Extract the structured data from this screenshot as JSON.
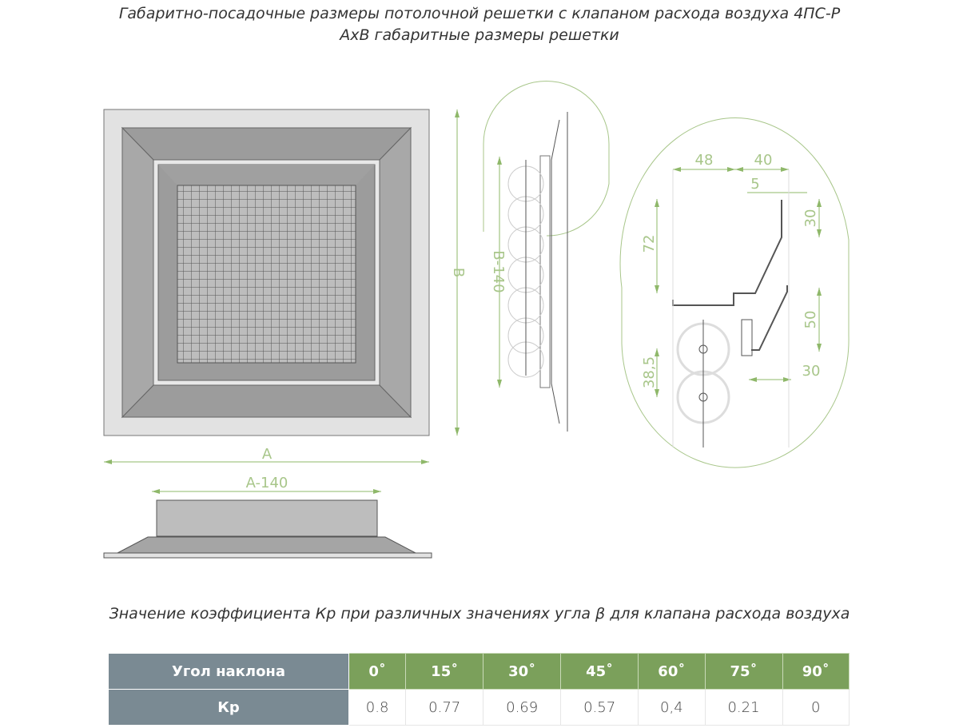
{
  "title_line1": "Габаритно-посадочные размеры потолочной решетки с клапаном расхода воздуха 4ПС-Р",
  "title_line2": "AxB габаритные размеры решетки",
  "drawing": {
    "front_dims": {
      "width": "A",
      "height": "B"
    },
    "bottom_dims": {
      "width": "A-140"
    },
    "side_dims": {
      "height": "B-140"
    },
    "detail_dims": {
      "d48": "48",
      "d40": "40",
      "d5": "5",
      "d72": "72",
      "d30a": "30",
      "d50": "50",
      "d38": "38,5",
      "d30b": "30"
    },
    "colors": {
      "dimension": "#8fb86a",
      "frame": "#e2e2e2",
      "bevel": "#9c9c9c"
    }
  },
  "table_caption": "Значение коэффициента Кр при различных значениях угла β для клапана расхода воздуха",
  "table": {
    "row1_header": "Угол наклона",
    "row2_header": "Кр",
    "angles": [
      "0˚",
      "15˚",
      "30˚",
      "45˚",
      "60˚",
      "75˚",
      "90˚"
    ],
    "kp": [
      "0.8",
      "0.77",
      "0.69",
      "0.57",
      "0,4",
      "0.21",
      "0"
    ],
    "colors": {
      "header_gray": "#7a8a93",
      "header_green": "#7ba05b"
    }
  }
}
